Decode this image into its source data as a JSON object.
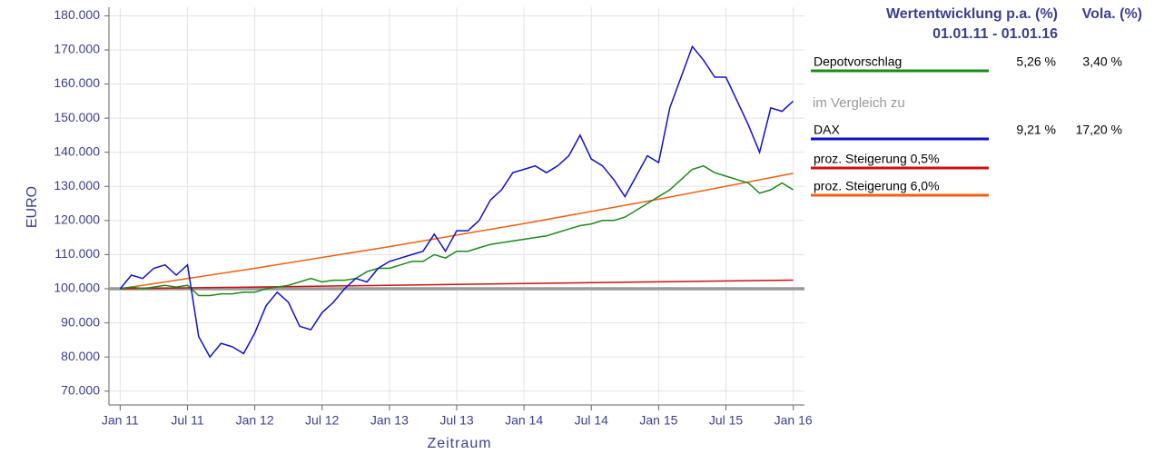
{
  "chart_data": {
    "type": "line",
    "y_label": "EURO",
    "x_label": "Zeitraum",
    "xlim": [
      -1,
      61
    ],
    "xticks": [
      {
        "value": 0,
        "label": "Jan 11"
      },
      {
        "value": 6,
        "label": "Jul 11"
      },
      {
        "value": 12,
        "label": "Jan 12"
      },
      {
        "value": 18,
        "label": "Jul 12"
      },
      {
        "value": 24,
        "label": "Jan 13"
      },
      {
        "value": 30,
        "label": "Jul 13"
      },
      {
        "value": 36,
        "label": "Jan 14"
      },
      {
        "value": 42,
        "label": "Jul 14"
      },
      {
        "value": 48,
        "label": "Jan 15"
      },
      {
        "value": 54,
        "label": "Jul 15"
      },
      {
        "value": 60,
        "label": "Jan 16"
      }
    ],
    "ylim": [
      67000,
      182500
    ],
    "yticks": [
      {
        "value": 70000,
        "label": "70.000"
      },
      {
        "value": 80000,
        "label": "80.000"
      },
      {
        "value": 90000,
        "label": "90.000"
      },
      {
        "value": 100000,
        "label": "100.000"
      },
      {
        "value": 110000,
        "label": "110.000"
      },
      {
        "value": 120000,
        "label": "120.000"
      },
      {
        "value": 130000,
        "label": "130.000"
      },
      {
        "value": 140000,
        "label": "140.000"
      },
      {
        "value": 150000,
        "label": "150.000"
      },
      {
        "value": 160000,
        "label": "160.000"
      },
      {
        "value": 170000,
        "label": "170.000"
      },
      {
        "value": 180000,
        "label": "180.000"
      }
    ],
    "grid": true,
    "baseline": 100000,
    "baseline_color": "#999999",
    "legend": {
      "header_return": "Wertentwicklung p.a. (%)",
      "header_vola": "Vola. (%)",
      "period": "01.01.11 - 01.01.16",
      "compare_text": "im Vergleich zu"
    },
    "series": [
      {
        "name": "Depotvorschlag",
        "color": "#1a8a1a",
        "return_label": "5,26 %",
        "vola_label": "3,40 %",
        "x": [
          0,
          1,
          2,
          3,
          4,
          5,
          6,
          7,
          8,
          9,
          10,
          11,
          12,
          13,
          14,
          15,
          16,
          17,
          18,
          19,
          20,
          21,
          22,
          23,
          24,
          25,
          26,
          27,
          28,
          29,
          30,
          31,
          32,
          33,
          34,
          35,
          36,
          37,
          38,
          39,
          40,
          41,
          42,
          43,
          44,
          45,
          46,
          47,
          48,
          49,
          50,
          51,
          52,
          53,
          54,
          55,
          56,
          57,
          58,
          59,
          60
        ],
        "values": [
          100000,
          100500,
          100000,
          100500,
          101000,
          100500,
          101000,
          98000,
          98000,
          98500,
          98500,
          99000,
          99000,
          100000,
          100500,
          101000,
          102000,
          103000,
          102000,
          102500,
          102500,
          103000,
          105000,
          106000,
          106000,
          107000,
          108000,
          108000,
          110000,
          109000,
          111000,
          111000,
          112000,
          113000,
          113500,
          114000,
          114500,
          115000,
          115500,
          116500,
          117500,
          118500,
          119000,
          120000,
          120000,
          121000,
          123000,
          125000,
          127000,
          129000,
          132000,
          135000,
          136000,
          134000,
          133000,
          132000,
          131000,
          128000,
          129000,
          131000,
          129000
        ]
      },
      {
        "name": "DAX",
        "color": "#1010cc",
        "return_label": "9,21 %",
        "vola_label": "17,20 %",
        "x": [
          0,
          1,
          2,
          3,
          4,
          5,
          6,
          7,
          8,
          9,
          10,
          11,
          12,
          13,
          14,
          15,
          16,
          17,
          18,
          19,
          20,
          21,
          22,
          23,
          24,
          25,
          26,
          27,
          28,
          29,
          30,
          31,
          32,
          33,
          34,
          35,
          36,
          37,
          38,
          39,
          40,
          41,
          42,
          43,
          44,
          45,
          46,
          47,
          48,
          49,
          50,
          51,
          52,
          53,
          54,
          55,
          56,
          57,
          58,
          59,
          60
        ],
        "values": [
          100000,
          104000,
          103000,
          106000,
          107000,
          104000,
          107000,
          86000,
          80000,
          84000,
          83000,
          81000,
          87000,
          95000,
          99000,
          96000,
          89000,
          88000,
          93000,
          96000,
          100000,
          103000,
          102000,
          106000,
          108000,
          109000,
          110000,
          111000,
          116000,
          111000,
          117000,
          117000,
          120000,
          126000,
          129000,
          134000,
          135000,
          136000,
          134000,
          136000,
          139000,
          145000,
          138000,
          136000,
          132000,
          127000,
          133000,
          139000,
          137000,
          153000,
          162000,
          171000,
          167000,
          162000,
          162000,
          155000,
          148000,
          140000,
          153000,
          152000,
          155000
        ]
      },
      {
        "name": "proz. Steigerung 0,5%",
        "color": "#cc1111",
        "x": [
          0,
          60
        ],
        "values": [
          100000,
          102530
        ]
      },
      {
        "name": "proz. Steigerung 6,0%",
        "color": "#f06010",
        "x": [
          0,
          12,
          24,
          36,
          48,
          60
        ],
        "values": [
          100000,
          106000,
          112360,
          119100,
          126250,
          133820
        ]
      }
    ]
  }
}
